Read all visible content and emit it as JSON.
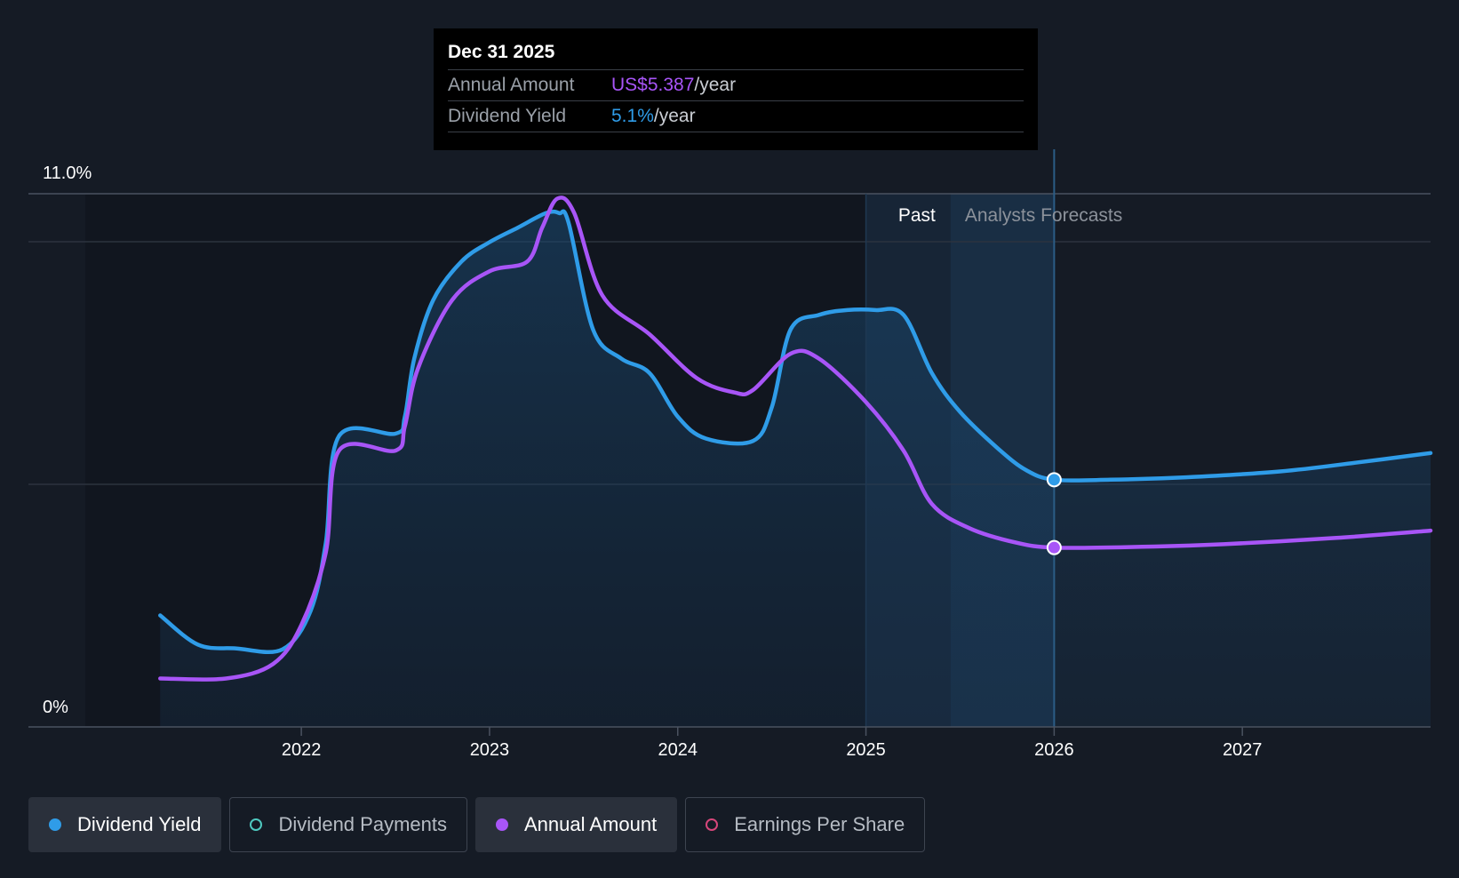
{
  "tooltip": {
    "date": "Dec 31 2025",
    "annual_label": "Annual Amount",
    "annual_value": "US$5.387",
    "annual_unit": "/year",
    "yield_label": "Dividend Yield",
    "yield_value": "5.1%",
    "yield_unit": "/year"
  },
  "regions": {
    "past": "Past",
    "forecast": "Analysts Forecasts"
  },
  "legend": [
    {
      "label": "Dividend Yield",
      "color": "#2f9ce8",
      "active": true,
      "filled": true
    },
    {
      "label": "Dividend Payments",
      "color": "#4fc9c0",
      "active": false,
      "filled": false
    },
    {
      "label": "Annual Amount",
      "color": "#a855f7",
      "active": true,
      "filled": true
    },
    {
      "label": "Earnings Per Share",
      "color": "#d6467a",
      "active": false,
      "filled": false
    }
  ],
  "chart_data": {
    "type": "line",
    "ylim": [
      0,
      11.0
    ],
    "y_tick_labels": [
      "11.0%",
      "0%"
    ],
    "x_tick_labels": [
      "2022",
      "2023",
      "2024",
      "2025",
      "2026",
      "2027"
    ],
    "x_ticks": [
      2022,
      2023,
      2024,
      2025,
      2026,
      2027
    ],
    "xlim": [
      2020.55,
      2028.0
    ],
    "past_start": 2025.0,
    "forecast_start": 2025.45,
    "highlight_x": 2026.0,
    "grid": true,
    "series": [
      {
        "name": "Dividend Yield",
        "color": "#2f9ce8",
        "x": [
          2021.25,
          2021.45,
          2021.65,
          2021.9,
          2022.05,
          2022.13,
          2022.2,
          2022.5,
          2022.55,
          2022.6,
          2022.7,
          2022.85,
          2023.0,
          2023.15,
          2023.3,
          2023.37,
          2023.42,
          2023.55,
          2023.7,
          2023.85,
          2024.0,
          2024.15,
          2024.4,
          2024.5,
          2024.6,
          2024.75,
          2024.9,
          2025.05,
          2025.2,
          2025.35,
          2025.5,
          2025.7,
          2025.85,
          2026.0,
          2026.3,
          2026.7,
          2027.2,
          2027.6,
          2028.0
        ],
        "values": [
          2.3,
          1.7,
          1.62,
          1.6,
          2.4,
          3.8,
          6.0,
          6.05,
          6.4,
          7.6,
          8.8,
          9.6,
          10.0,
          10.3,
          10.6,
          10.6,
          10.4,
          8.2,
          7.6,
          7.3,
          6.4,
          5.95,
          5.9,
          6.6,
          8.2,
          8.5,
          8.6,
          8.6,
          8.5,
          7.3,
          6.5,
          5.75,
          5.3,
          5.1,
          5.1,
          5.15,
          5.27,
          5.45,
          5.65
        ]
      },
      {
        "name": "Annual Amount",
        "color": "#a855f7",
        "x": [
          2021.25,
          2021.6,
          2021.85,
          2022.0,
          2022.13,
          2022.2,
          2022.5,
          2022.55,
          2022.62,
          2022.8,
          2023.0,
          2023.2,
          2023.28,
          2023.36,
          2023.45,
          2023.6,
          2023.85,
          2024.1,
          2024.3,
          2024.4,
          2024.6,
          2024.75,
          2025.0,
          2025.2,
          2025.35,
          2025.55,
          2025.8,
          2026.0,
          2026.4,
          2026.9,
          2027.5,
          2028.0
        ],
        "values": [
          1.0,
          1.0,
          1.3,
          2.1,
          3.6,
          5.7,
          5.7,
          6.2,
          7.4,
          8.8,
          9.4,
          9.6,
          10.3,
          10.9,
          10.6,
          8.9,
          8.1,
          7.2,
          6.9,
          6.95,
          7.7,
          7.6,
          6.7,
          5.7,
          4.6,
          4.1,
          3.8,
          3.7,
          3.71,
          3.77,
          3.9,
          4.05
        ]
      }
    ]
  }
}
